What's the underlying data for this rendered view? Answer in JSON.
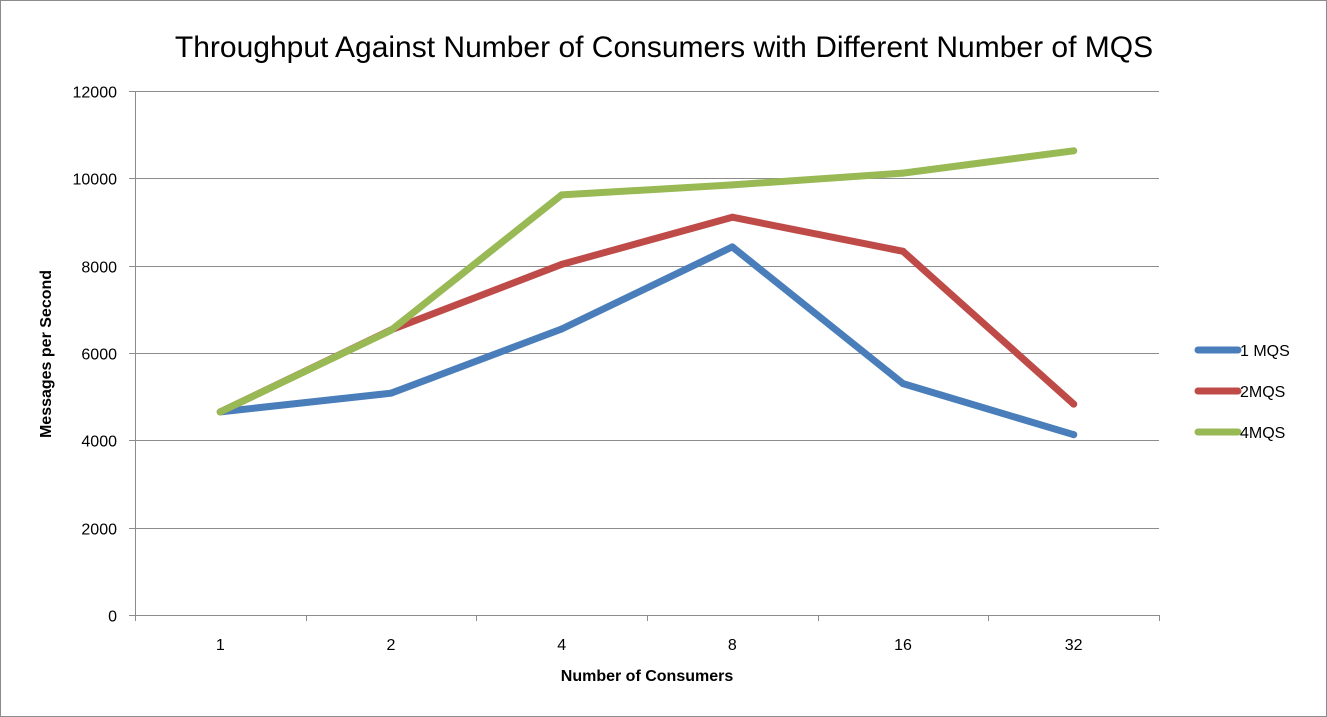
{
  "chart_data": {
    "type": "line",
    "title": "Throughput Against Number of Consumers with Different Number of MQS",
    "xlabel": "Number of Consumers",
    "ylabel": "Messages per Second",
    "categories": [
      "1",
      "2",
      "4",
      "8",
      "16",
      "32"
    ],
    "ylim": [
      0,
      12000
    ],
    "yticks": [
      0,
      2000,
      4000,
      6000,
      8000,
      10000,
      12000
    ],
    "grid": true,
    "legend_position": "right",
    "series": [
      {
        "name": "1 MQS",
        "color": "#4a7ebb",
        "values": [
          4650,
          5080,
          6550,
          8430,
          5300,
          4130
        ]
      },
      {
        "name": "2MQS",
        "color": "#be4b48",
        "values": [
          4650,
          6530,
          8030,
          9110,
          8330,
          4830
        ]
      },
      {
        "name": "4MQS",
        "color": "#98b954",
        "values": [
          4650,
          6520,
          9620,
          9850,
          10120,
          10630
        ]
      }
    ]
  }
}
